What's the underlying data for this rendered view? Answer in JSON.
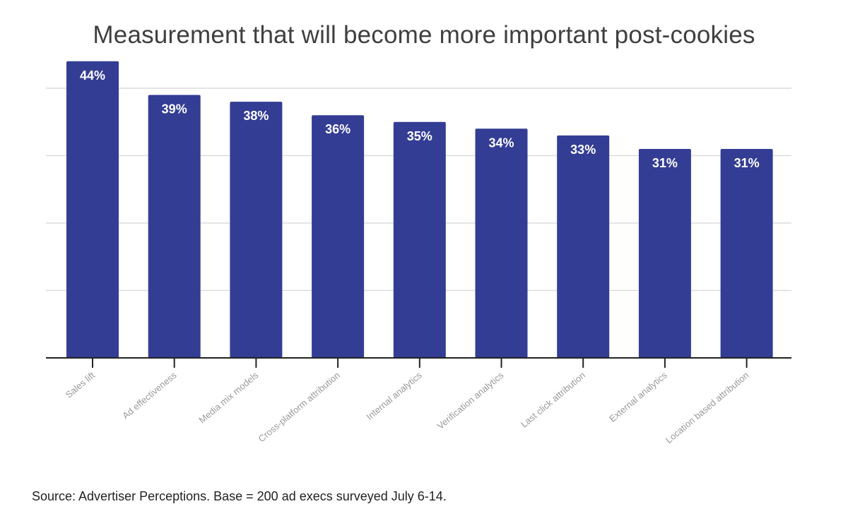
{
  "chart_data": {
    "type": "bar",
    "title": "Measurement that will become more important post-cookies",
    "categories": [
      "Sales lift",
      "Ad effectiveness",
      "Media mix models",
      "Cross-platform attribution",
      "Internal analytics",
      "Verification analytics",
      "Last click attribution",
      "External analytics",
      "Location based attribution"
    ],
    "values": [
      44,
      39,
      38,
      36,
      35,
      34,
      33,
      31,
      31
    ],
    "value_labels": [
      "44%",
      "39%",
      "38%",
      "36%",
      "35%",
      "34%",
      "33%",
      "31%",
      "31%"
    ],
    "unit": "%",
    "ylim": [
      0,
      40
    ],
    "gridline_values": [
      10,
      20,
      30,
      40
    ],
    "xlabel": "",
    "ylabel": "",
    "grid": true,
    "legend": "none",
    "colors": {
      "bar": "#343d94",
      "grid": "#dcdcdc",
      "axis": "#222222",
      "label": "#9a9a9a"
    }
  },
  "source_note": "Source: Advertiser Perceptions. Base = 200 ad execs surveyed July 6-14."
}
